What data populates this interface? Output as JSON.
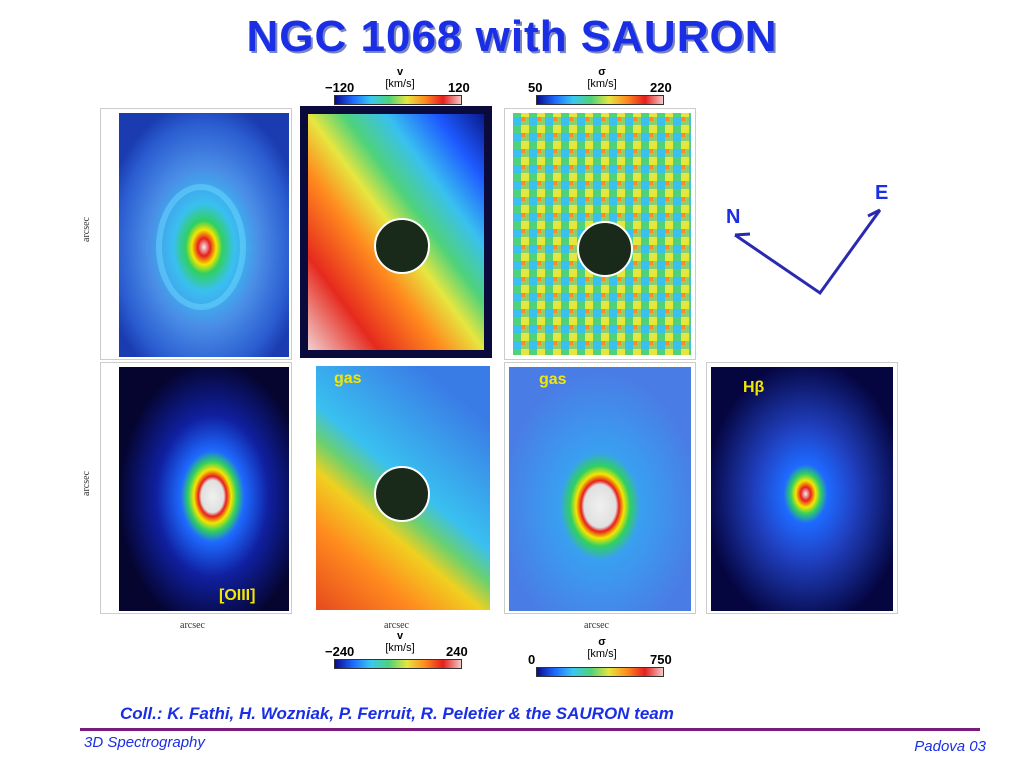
{
  "title": "NGC 1068 with SAURON",
  "colorbar_top_v": {
    "symbol": "v",
    "unit": "[km/s]",
    "min": "−120",
    "max": "120"
  },
  "colorbar_top_sigma": {
    "symbol": "σ",
    "unit": "[km/s]",
    "min": "50",
    "max": "220"
  },
  "colorbar_bottom_v": {
    "symbol": "v",
    "unit": "[km/s]",
    "min": "−240",
    "max": "240"
  },
  "colorbar_bottom_sigma": {
    "symbol": "σ",
    "unit": "[km/s]",
    "min": "0",
    "max": "750"
  },
  "labels": {
    "gas1": "gas",
    "gas2": "gas",
    "oiii": "[OIII]",
    "hbeta": "Hβ"
  },
  "axis": {
    "arcsec": "arcsec"
  },
  "compass": {
    "north": "N",
    "east": "E"
  },
  "credit": "Coll.: K. Fathi, H. Wozniak, P. Ferruit, R. Peletier & the SAURON team",
  "footer": {
    "left": "3D Spectrography",
    "right": "Padova 03"
  },
  "colors": {
    "accent": "#1a2ee6",
    "rule": "#7a1a7a",
    "label_yellow": "#f5e600"
  }
}
